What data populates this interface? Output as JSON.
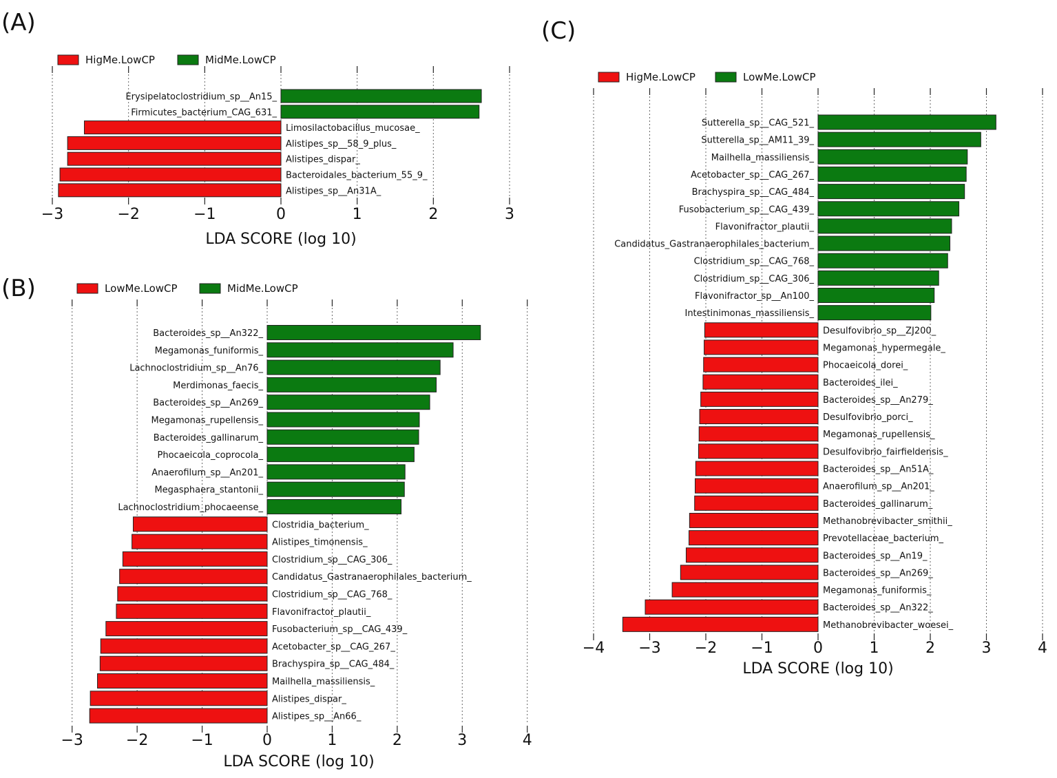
{
  "colors": {
    "red": "#ee1111",
    "green": "#0b7a11",
    "bar_stroke": "#222222"
  },
  "chart_data": [
    {
      "panel": "(A)",
      "type": "bar",
      "orientation": "horizontal",
      "title": "",
      "xlabel": "LDA SCORE (log 10)",
      "ylabel": "",
      "xlim": [
        -3,
        3
      ],
      "xticks": [
        "−3",
        "−2",
        "−1",
        "0",
        "1",
        "2",
        "3"
      ],
      "grid": true,
      "legend_position": "top-left",
      "legend": [
        {
          "name": "HigMe.LowCP",
          "color": "red"
        },
        {
          "name": "MidMe.LowCP",
          "color": "green"
        }
      ],
      "bars": [
        {
          "label": "Erysipelatoclostridium_sp__An15_",
          "value": 2.63,
          "group": "green"
        },
        {
          "label": "Firmicutes_bacterium_CAG_631_",
          "value": 2.6,
          "group": "green"
        },
        {
          "label": "Limosilactobacillus_mucosae_",
          "value": -2.58,
          "group": "red"
        },
        {
          "label": "Alistipes_sp__58_9_plus_",
          "value": -2.8,
          "group": "red"
        },
        {
          "label": "Alistipes_dispar_",
          "value": -2.8,
          "group": "red"
        },
        {
          "label": "Bacteroidales_bacterium_55_9_",
          "value": -2.9,
          "group": "red"
        },
        {
          "label": "Alistipes_sp__An31A_",
          "value": -2.92,
          "group": "red"
        }
      ]
    },
    {
      "panel": "(B)",
      "type": "bar",
      "orientation": "horizontal",
      "title": "",
      "xlabel": "LDA SCORE (log 10)",
      "ylabel": "",
      "xlim": [
        -3,
        4
      ],
      "xticks": [
        "−3",
        "−2",
        "−1",
        "0",
        "1",
        "2",
        "3",
        "4"
      ],
      "grid": true,
      "legend_position": "top-left",
      "legend": [
        {
          "name": "LowMe.LowCP",
          "color": "red"
        },
        {
          "name": "MidMe.LowCP",
          "color": "green"
        }
      ],
      "bars": [
        {
          "label": "Bacteroides_sp__An322_",
          "value": 3.28,
          "group": "green"
        },
        {
          "label": "Megamonas_funiformis_",
          "value": 2.86,
          "group": "green"
        },
        {
          "label": "Lachnoclostridium_sp__An76_",
          "value": 2.66,
          "group": "green"
        },
        {
          "label": "Merdimonas_faecis_",
          "value": 2.6,
          "group": "green"
        },
        {
          "label": "Bacteroides_sp__An269_",
          "value": 2.5,
          "group": "green"
        },
        {
          "label": "Megamonas_rupellensis_",
          "value": 2.34,
          "group": "green"
        },
        {
          "label": "Bacteroides_gallinarum_",
          "value": 2.33,
          "group": "green"
        },
        {
          "label": "Phocaeicola_coprocola_",
          "value": 2.26,
          "group": "green"
        },
        {
          "label": "Anaerofilum_sp__An201_",
          "value": 2.12,
          "group": "green"
        },
        {
          "label": "Megasphaera_stantonii_",
          "value": 2.11,
          "group": "green"
        },
        {
          "label": "Lachnoclostridium_phocaeense_",
          "value": 2.06,
          "group": "green"
        },
        {
          "label": "Clostridia_bacterium_",
          "value": -2.06,
          "group": "red"
        },
        {
          "label": "Alistipes_timonensis_",
          "value": -2.08,
          "group": "red"
        },
        {
          "label": "Clostridium_sp__CAG_306_",
          "value": -2.22,
          "group": "red"
        },
        {
          "label": "Candidatus_Gastranaerophilales_bacterium_",
          "value": -2.27,
          "group": "red"
        },
        {
          "label": "Clostridium_sp__CAG_768_",
          "value": -2.3,
          "group": "red"
        },
        {
          "label": "Flavonifractor_plautii_",
          "value": -2.32,
          "group": "red"
        },
        {
          "label": "Fusobacterium_sp__CAG_439_",
          "value": -2.48,
          "group": "red"
        },
        {
          "label": "Acetobacter_sp__CAG_267_",
          "value": -2.56,
          "group": "red"
        },
        {
          "label": "Brachyspira_sp__CAG_484_",
          "value": -2.57,
          "group": "red"
        },
        {
          "label": "Mailhella_massiliensis_",
          "value": -2.61,
          "group": "red"
        },
        {
          "label": "Alistipes_dispar_",
          "value": -2.72,
          "group": "red"
        },
        {
          "label": "Alistipes_sp__An66_",
          "value": -2.73,
          "group": "red"
        }
      ]
    },
    {
      "panel": "(C)",
      "type": "bar",
      "orientation": "horizontal",
      "title": "",
      "xlabel": "LDA SCORE (log 10)",
      "ylabel": "",
      "xlim": [
        -4,
        4
      ],
      "xticks": [
        "−4",
        "−3",
        "−2",
        "−1",
        "0",
        "1",
        "2",
        "3",
        "4"
      ],
      "grid": true,
      "legend_position": "top-left",
      "legend": [
        {
          "name": "HigMe.LowCP",
          "color": "red"
        },
        {
          "name": "LowMe.LowCP",
          "color": "green"
        }
      ],
      "bars": [
        {
          "label": "Sutterella_sp__CAG_521_",
          "value": 3.17,
          "group": "green"
        },
        {
          "label": "Sutterella_sp__AM11_39_",
          "value": 2.9,
          "group": "green"
        },
        {
          "label": "Mailhella_massiliensis_",
          "value": 2.66,
          "group": "green"
        },
        {
          "label": "Acetobacter_sp__CAG_267_",
          "value": 2.64,
          "group": "green"
        },
        {
          "label": "Brachyspira_sp__CAG_484_",
          "value": 2.61,
          "group": "green"
        },
        {
          "label": "Fusobacterium_sp__CAG_439_",
          "value": 2.51,
          "group": "green"
        },
        {
          "label": "Flavonifractor_plautii_",
          "value": 2.38,
          "group": "green"
        },
        {
          "label": "Candidatus_Gastranaerophilales_bacterium_",
          "value": 2.35,
          "group": "green"
        },
        {
          "label": "Clostridium_sp__CAG_768_",
          "value": 2.31,
          "group": "green"
        },
        {
          "label": "Clostridium_sp__CAG_306_",
          "value": 2.15,
          "group": "green"
        },
        {
          "label": "Flavonifractor_sp__An100_",
          "value": 2.07,
          "group": "green"
        },
        {
          "label": "Intestinimonas_massiliensis_",
          "value": 2.01,
          "group": "green"
        },
        {
          "label": "Desulfovibrio_sp__ZJ200_",
          "value": -2.02,
          "group": "red"
        },
        {
          "label": "Megamonas_hypermegale_",
          "value": -2.03,
          "group": "red"
        },
        {
          "label": "Phocaeicola_dorei_",
          "value": -2.04,
          "group": "red"
        },
        {
          "label": "Bacteroides_ilei_",
          "value": -2.05,
          "group": "red"
        },
        {
          "label": "Bacteroides_sp__An279_",
          "value": -2.09,
          "group": "red"
        },
        {
          "label": "Desulfovibrio_porci_",
          "value": -2.11,
          "group": "red"
        },
        {
          "label": "Megamonas_rupellensis_",
          "value": -2.12,
          "group": "red"
        },
        {
          "label": "Desulfovibrio_fairfieldensis_",
          "value": -2.13,
          "group": "red"
        },
        {
          "label": "Bacteroides_sp__An51A_",
          "value": -2.18,
          "group": "red"
        },
        {
          "label": "Anaerofilum_sp__An201_",
          "value": -2.19,
          "group": "red"
        },
        {
          "label": "Bacteroides_gallinarum_",
          "value": -2.2,
          "group": "red"
        },
        {
          "label": "Methanobrevibacter_smithii_",
          "value": -2.29,
          "group": "red"
        },
        {
          "label": "Prevotellaceae_bacterium_",
          "value": -2.3,
          "group": "red"
        },
        {
          "label": "Bacteroides_sp__An19_",
          "value": -2.35,
          "group": "red"
        },
        {
          "label": "Bacteroides_sp__An269_",
          "value": -2.45,
          "group": "red"
        },
        {
          "label": "Megamonas_funiformis_",
          "value": -2.6,
          "group": "red"
        },
        {
          "label": "Bacteroides_sp__An322_",
          "value": -3.08,
          "group": "red"
        },
        {
          "label": "Methanobrevibacter_woesei_",
          "value": -3.48,
          "group": "red"
        }
      ]
    }
  ]
}
